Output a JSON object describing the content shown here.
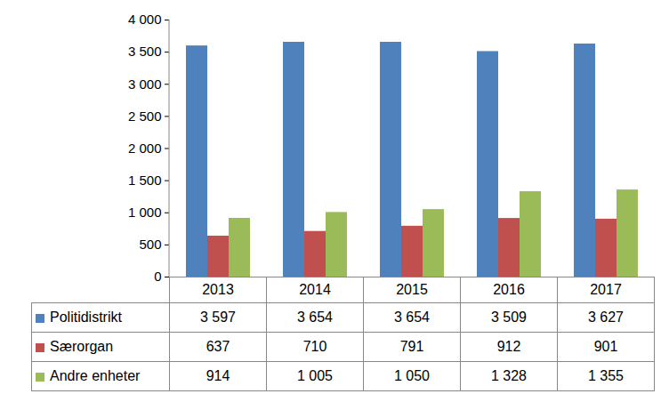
{
  "chart_data": {
    "type": "bar",
    "categories": [
      "2013",
      "2014",
      "2015",
      "2016",
      "2017"
    ],
    "series": [
      {
        "name": "Politidistrikt",
        "color": "#4F81BD",
        "values": [
          3597,
          3654,
          3654,
          3509,
          3627
        ],
        "value_labels": [
          "3 597",
          "3 654",
          "3 654",
          "3 509",
          "3 627"
        ]
      },
      {
        "name": "Særorgan",
        "color": "#C0504D",
        "values": [
          637,
          710,
          791,
          912,
          901
        ],
        "value_labels": [
          "637",
          "710",
          "791",
          "912",
          "901"
        ]
      },
      {
        "name": "Andre enheter",
        "color": "#9BBB59",
        "values": [
          914,
          1005,
          1050,
          1328,
          1355
        ],
        "value_labels": [
          "914",
          "1 005",
          "1 050",
          "1 328",
          "1 355"
        ]
      }
    ],
    "ylim": [
      0,
      4000
    ],
    "yticks": [
      0,
      500,
      {
        "value": 1000,
        "label": "1 000"
      },
      {
        "value": 1500,
        "label": "1 500"
      },
      {
        "value": 2000,
        "label": "2 000"
      },
      {
        "value": 2500,
        "label": "2 500"
      },
      {
        "value": 3000,
        "label": "3 000"
      },
      {
        "value": 3500,
        "label": "3 500"
      },
      {
        "value": 4000,
        "label": "4 000"
      }
    ],
    "grid": false
  }
}
